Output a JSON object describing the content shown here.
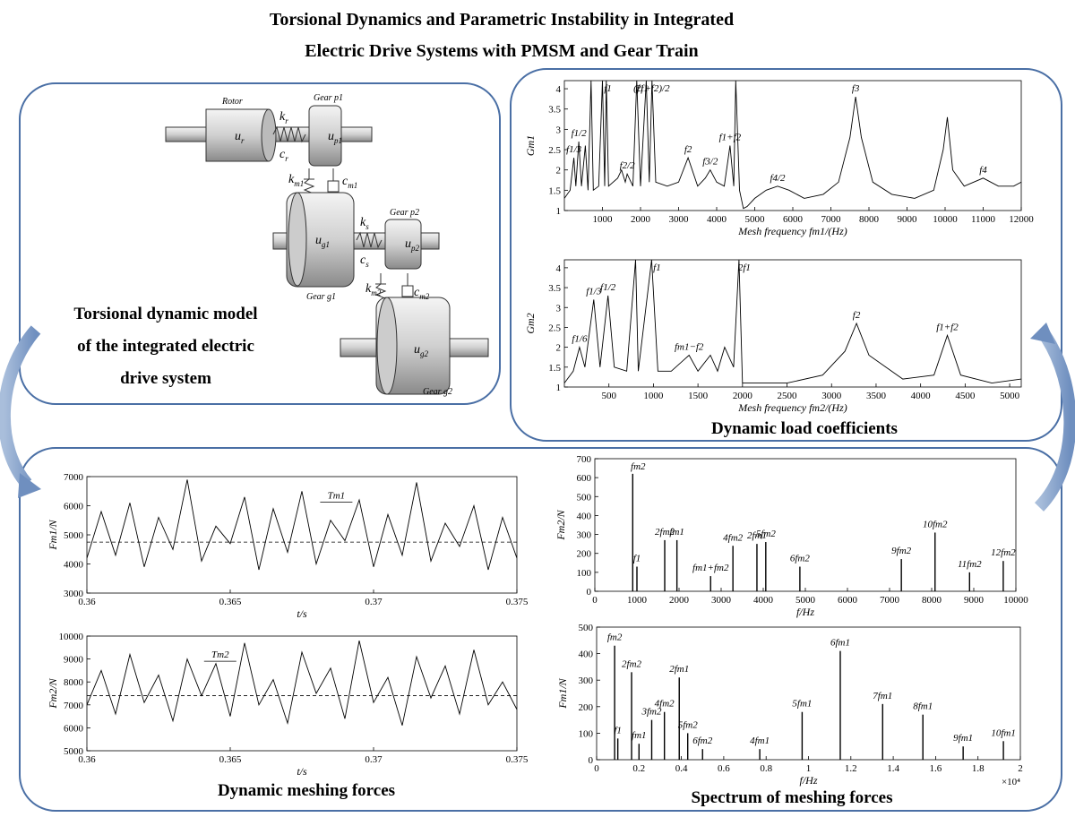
{
  "title": [
    "Torsional Dynamics and Parametric Instability in Integrated",
    "Electric Drive Systems with PMSM and Gear Train"
  ],
  "captions": {
    "model": [
      "Torsional dynamic model",
      "of the integrated electric",
      "drive system"
    ],
    "load": "Dynamic load coefficients",
    "forces": "Dynamic meshing forces",
    "spectrum": "Spectrum of meshing forces"
  },
  "model": {
    "names": [
      "Rotor",
      "Gear p1",
      "Gear p2",
      "Gear g1",
      "Gear g2"
    ],
    "symbols": [
      {
        "base": "k",
        "sub": "r"
      },
      {
        "base": "c",
        "sub": "r"
      },
      {
        "base": "u",
        "sub": "r"
      },
      {
        "base": "u",
        "sub": "p1"
      },
      {
        "base": "k",
        "sub": "m1"
      },
      {
        "base": "c",
        "sub": "m1"
      },
      {
        "base": "u",
        "sub": "g1"
      },
      {
        "base": "k",
        "sub": "s"
      },
      {
        "base": "c",
        "sub": "s"
      },
      {
        "base": "u",
        "sub": "p2"
      },
      {
        "base": "k",
        "sub": "m2"
      },
      {
        "base": "c",
        "sub": "m2"
      },
      {
        "base": "u",
        "sub": "g2"
      }
    ]
  },
  "chart_data": [
    {
      "type": "line",
      "color": "#000",
      "xlabel": "Mesh frequency  fm1/(Hz)",
      "ylabel": "Gm1",
      "xlim": [
        0,
        12000
      ],
      "xticks": [
        1000,
        2000,
        3000,
        4000,
        5000,
        6000,
        7000,
        8000,
        9000,
        10000,
        11000,
        12000
      ],
      "ylim": [
        1,
        4.2
      ],
      "yticks": [
        1,
        1.5,
        2,
        2.5,
        3,
        3.5,
        4
      ],
      "x": [
        0,
        150,
        250,
        300,
        380,
        450,
        550,
        620,
        700,
        760,
        900,
        1000,
        1060,
        1100,
        1160,
        1400,
        1500,
        1600,
        1650,
        1800,
        1900,
        2000,
        2150,
        2230,
        2300,
        2400,
        2700,
        3000,
        3250,
        3500,
        3700,
        3830,
        4000,
        4200,
        4350,
        4450,
        4500,
        4600,
        4700,
        4800,
        5000,
        5300,
        5600,
        5900,
        6300,
        6800,
        7200,
        7500,
        7650,
        7800,
        8100,
        8600,
        9200,
        9700,
        9950,
        10060,
        10200,
        10500,
        11000,
        11400,
        11800,
        12000
      ],
      "values": [
        1.3,
        1.5,
        2.3,
        1.6,
        2.7,
        1.6,
        2.6,
        1.5,
        4.2,
        1.5,
        1.6,
        4.2,
        1.6,
        4.2,
        1.6,
        1.8,
        2.0,
        1.7,
        1.9,
        1.6,
        4.2,
        1.6,
        4.2,
        1.7,
        4.2,
        1.7,
        1.6,
        1.7,
        2.3,
        1.6,
        1.8,
        2.0,
        1.7,
        1.6,
        2.6,
        1.6,
        4.2,
        1.5,
        1.05,
        1.1,
        1.3,
        1.5,
        1.6,
        1.5,
        1.3,
        1.4,
        1.7,
        2.8,
        3.8,
        2.8,
        1.7,
        1.4,
        1.3,
        1.5,
        2.5,
        3.3,
        2.0,
        1.6,
        1.8,
        1.6,
        1.6,
        1.7
      ],
      "peak_labels": [
        null,
        null,
        "f1/3",
        null,
        "f1/2",
        null,
        null,
        null,
        null,
        null,
        null,
        "f1",
        null,
        null,
        null,
        null,
        null,
        null,
        "f2/2",
        null,
        "2f1",
        null,
        "(f1+f2)/2",
        null,
        null,
        null,
        null,
        null,
        "f2",
        null,
        null,
        "f3/2",
        null,
        null,
        "f1+f2",
        null,
        null,
        null,
        null,
        null,
        null,
        null,
        "f4/2",
        null,
        null,
        null,
        null,
        null,
        "f3",
        null,
        null,
        null,
        null,
        null,
        null,
        null,
        null,
        null,
        "f4",
        null,
        null,
        null
      ]
    },
    {
      "type": "line",
      "color": "#000",
      "xlabel": "Mesh frequency  fm2/(Hz)",
      "ylabel": "Gm2",
      "xlim": [
        0,
        5130
      ],
      "xticks": [
        500,
        1000,
        1500,
        2000,
        2500,
        3000,
        3500,
        4000,
        4500,
        5000
      ],
      "ylim": [
        1,
        4.2
      ],
      "yticks": [
        1,
        1.5,
        2,
        2.5,
        3,
        3.5,
        4
      ],
      "x": [
        0,
        100,
        170,
        230,
        330,
        400,
        490,
        560,
        700,
        800,
        830,
        980,
        1050,
        1200,
        1400,
        1500,
        1640,
        1720,
        1800,
        1900,
        1960,
        2000,
        2500,
        2900,
        3150,
        3280,
        3420,
        3800,
        4150,
        4300,
        4450,
        4800,
        5130
      ],
      "values": [
        1.1,
        1.4,
        2.0,
        1.5,
        3.2,
        1.5,
        3.3,
        1.5,
        1.4,
        4.2,
        1.4,
        4.2,
        1.4,
        1.4,
        1.8,
        1.4,
        1.8,
        1.4,
        2.0,
        1.5,
        4.2,
        1.1,
        1.1,
        1.3,
        1.9,
        2.6,
        1.8,
        1.2,
        1.3,
        2.3,
        1.3,
        1.1,
        1.2
      ],
      "peak_labels": [
        null,
        null,
        "f1/6",
        null,
        "f1/3",
        null,
        "f1/2",
        null,
        null,
        null,
        null,
        "f1",
        null,
        null,
        "fm1−f2",
        null,
        null,
        null,
        null,
        null,
        "2f1",
        null,
        null,
        null,
        null,
        "f2",
        null,
        null,
        null,
        "f1+f2",
        null,
        null,
        null
      ]
    },
    {
      "type": "line",
      "color": "#000",
      "xlabel": "t/s",
      "ylabel": "Fm1/N",
      "annotation": "Tm1",
      "reference_line": 4750,
      "xlim": [
        0.36,
        0.375
      ],
      "xticks": [
        0.36,
        0.365,
        0.37,
        0.375
      ],
      "ylim": [
        3000,
        7000
      ],
      "yticks": [
        3000,
        4000,
        5000,
        6000,
        7000
      ],
      "x": [
        0.36,
        0.3605,
        0.361,
        0.3615,
        0.362,
        0.3625,
        0.363,
        0.3635,
        0.364,
        0.3645,
        0.365,
        0.3655,
        0.366,
        0.3665,
        0.367,
        0.3675,
        0.368,
        0.3685,
        0.369,
        0.3695,
        0.37,
        0.3705,
        0.371,
        0.3715,
        0.372,
        0.3725,
        0.373,
        0.3735,
        0.374,
        0.3745,
        0.375
      ],
      "values": [
        4200,
        5800,
        4300,
        6100,
        3900,
        5600,
        4500,
        6900,
        4100,
        5300,
        4700,
        6300,
        3800,
        5900,
        4400,
        6500,
        4000,
        5500,
        4800,
        6200,
        3900,
        5700,
        4300,
        6800,
        4100,
        5400,
        4600,
        6000,
        3800,
        5600,
        4200
      ]
    },
    {
      "type": "line",
      "color": "#000",
      "xlabel": "t/s",
      "ylabel": "Fm2/N",
      "annotation": "Tm2",
      "reference_line": 7400,
      "xlim": [
        0.36,
        0.375
      ],
      "xticks": [
        0.36,
        0.365,
        0.37,
        0.375
      ],
      "ylim": [
        5000,
        10000
      ],
      "yticks": [
        5000,
        6000,
        7000,
        8000,
        9000,
        10000
      ],
      "x": [
        0.36,
        0.3605,
        0.361,
        0.3615,
        0.362,
        0.3625,
        0.363,
        0.3635,
        0.364,
        0.3645,
        0.365,
        0.3655,
        0.366,
        0.3665,
        0.367,
        0.3675,
        0.368,
        0.3685,
        0.369,
        0.3695,
        0.37,
        0.3705,
        0.371,
        0.3715,
        0.372,
        0.3725,
        0.373,
        0.3735,
        0.374,
        0.3745,
        0.375
      ],
      "values": [
        7000,
        8500,
        6600,
        9200,
        7100,
        8300,
        6300,
        9000,
        7400,
        8800,
        6500,
        9700,
        7000,
        8100,
        6200,
        9300,
        7500,
        8600,
        6400,
        9800,
        7100,
        8200,
        6100,
        9100,
        7300,
        8700,
        6600,
        9400,
        7000,
        8000,
        6800
      ]
    },
    {
      "type": "stem",
      "color": "#000",
      "xlabel": "f/Hz",
      "ylabel": "Fm2/N",
      "xlim": [
        0,
        10000
      ],
      "xticks": [
        0,
        1000,
        2000,
        3000,
        4000,
        5000,
        6000,
        7000,
        8000,
        9000,
        10000
      ],
      "ylim": [
        0,
        700
      ],
      "yticks": [
        0,
        100,
        200,
        300,
        400,
        500,
        600,
        700
      ],
      "x": [
        900,
        1000,
        1660,
        1950,
        2750,
        3280,
        3850,
        4060,
        4870,
        7280,
        8080,
        8900,
        9700
      ],
      "values": [
        620,
        130,
        270,
        270,
        80,
        240,
        250,
        260,
        130,
        170,
        310,
        100,
        160
      ],
      "peak_labels": [
        "fm2",
        "f1",
        "2fm2",
        "fm1",
        "fm1+fm2",
        "4fm2",
        "2fm1",
        "5fm2",
        "6fm2",
        "9fm2",
        "10fm2",
        "11fm2",
        "12fm2"
      ]
    },
    {
      "type": "stem",
      "color": "#000",
      "xlabel": "f/Hz",
      "ylabel": "Fm1/N",
      "x_multiplier": "×10⁴",
      "xlim": [
        0,
        2
      ],
      "xticks": [
        0,
        0.2,
        0.4,
        0.6,
        0.8,
        1,
        1.2,
        1.4,
        1.6,
        1.8,
        2
      ],
      "ylim": [
        0,
        500
      ],
      "yticks": [
        0,
        100,
        200,
        300,
        400,
        500
      ],
      "x": [
        0.085,
        0.1,
        0.165,
        0.2,
        0.26,
        0.32,
        0.39,
        0.43,
        0.5,
        0.77,
        0.97,
        1.15,
        1.35,
        1.54,
        1.73,
        1.92
      ],
      "values": [
        430,
        80,
        330,
        60,
        150,
        180,
        310,
        100,
        40,
        40,
        180,
        410,
        210,
        170,
        50,
        70
      ],
      "peak_labels": [
        "fm2",
        "f1",
        "2fm2",
        "fm1",
        "3fm2",
        "4fm2",
        "2fm1",
        "5fm2",
        "6fm2",
        "4fm1",
        "5fm1",
        "6fm1",
        "7fm1",
        "8fm1",
        "9fm1",
        "10fm1"
      ]
    }
  ]
}
